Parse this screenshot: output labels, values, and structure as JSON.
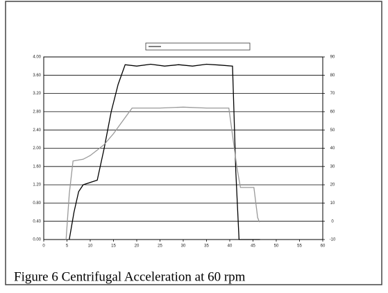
{
  "chart_data": {
    "type": "line",
    "caption": "Figure 6 Centrifugal Acceleration at 60 rpm",
    "xlim": [
      0,
      60
    ],
    "xticks": [
      0,
      5,
      10,
      15,
      20,
      25,
      30,
      35,
      40,
      45,
      50,
      55,
      60
    ],
    "ylim": [
      0,
      4
    ],
    "yticks": [
      {
        "value": 0,
        "label": "0.00"
      },
      {
        "value": 0.4,
        "label": "0.40"
      },
      {
        "value": 0.8,
        "label": "0.80"
      },
      {
        "value": 1.2,
        "label": "1.20"
      },
      {
        "value": 1.6,
        "label": "1.60"
      },
      {
        "value": 2,
        "label": "2.00"
      },
      {
        "value": 2.4,
        "label": "2.40"
      },
      {
        "value": 2.8,
        "label": "2.80"
      },
      {
        "value": 3.2,
        "label": "3.20"
      },
      {
        "value": 3.6,
        "label": "3.60"
      },
      {
        "value": 4,
        "label": "4.00"
      }
    ],
    "y2lim": [
      -10,
      90
    ],
    "y2ticks": [
      -10,
      0,
      10,
      20,
      30,
      40,
      50,
      60,
      70,
      80,
      90
    ],
    "grid": true,
    "series": [
      {
        "color": "#000000",
        "x": [
          5.5,
          6.5,
          7.5,
          8.5,
          10,
          11.5,
          13,
          14.5,
          16,
          17.5,
          20,
          23,
          26,
          29,
          32,
          35,
          38,
          40.6,
          41.3,
          42,
          46.5
        ],
        "values": [
          0,
          0.6,
          1.05,
          1.2,
          1.25,
          1.3,
          2.0,
          2.8,
          3.4,
          3.83,
          3.8,
          3.84,
          3.8,
          3.83,
          3.8,
          3.84,
          3.82,
          3.8,
          1.5,
          0,
          0
        ]
      },
      {
        "color": "#999999",
        "axis": "y2",
        "x": [
          4.8,
          5.5,
          6.3,
          8.5,
          10,
          11.5,
          13,
          15,
          17,
          19,
          25,
          30,
          35,
          39.8,
          41.5,
          42.3,
          45.2,
          46,
          46.4
        ],
        "values": [
          -10,
          15,
          33,
          34,
          36,
          39,
          42,
          48,
          55,
          62,
          62,
          62.5,
          62,
          62,
          30,
          18.5,
          18.5,
          2,
          -0.5
        ]
      }
    ]
  }
}
